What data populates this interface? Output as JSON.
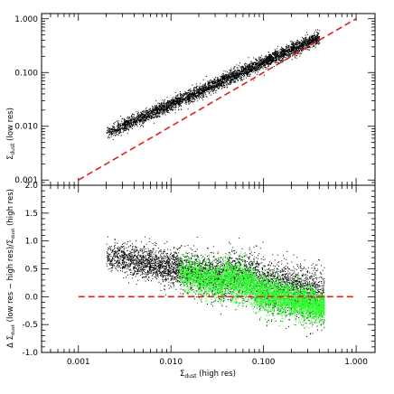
{
  "chart_data": [
    {
      "id": "top",
      "type": "scatter",
      "xlabel_main": "Σ",
      "xlabel_sub": "dust",
      "xlabel_tail": " (high res)",
      "ylabel_main": "Σ",
      "ylabel_sub": "dust",
      "ylabel_tail": " (low res)",
      "xscale": "log",
      "yscale": "log",
      "xlim": [
        0.0004,
        1.6
      ],
      "ylim": [
        0.0008,
        1.25
      ],
      "yticks": [
        0.001,
        0.01,
        0.1,
        1.0
      ],
      "ytick_labels": [
        "0.001",
        "0.010",
        "0.100",
        "1.000"
      ],
      "series": [
        {
          "color": "#000000",
          "points_desc": "dense black point cloud following low = 0.95*high^0.78 with scatter",
          "x_range": [
            0.002,
            0.4
          ]
        }
      ],
      "reference_line": {
        "from": [
          0.001,
          0.001
        ],
        "to": [
          1.0,
          1.0
        ],
        "color": "#e02020",
        "style": "dashed"
      }
    },
    {
      "id": "bottom",
      "type": "scatter",
      "xlabel_main": "Σ",
      "xlabel_sub": "dust",
      "xlabel_tail": " (high res)",
      "ylabel_text": "Δ Σ",
      "ylabel_sub1": "dust",
      "ylabel_mid": " (low res − high res)/Σ",
      "ylabel_sub2": "dust",
      "ylabel_tail": " (high res)",
      "xscale": "log",
      "yscale": "linear",
      "xlim": [
        0.0004,
        1.6
      ],
      "ylim": [
        -1.0,
        2.0
      ],
      "xticks": [
        0.001,
        0.01,
        0.1,
        1.0
      ],
      "xtick_labels": [
        "0.001",
        "0.010",
        "0.100",
        "1.000"
      ],
      "yticks": [
        -1.0,
        -0.5,
        0.0,
        0.5,
        1.0,
        1.5,
        2.0
      ],
      "ytick_labels": [
        "-1.0",
        "-0.5",
        "0.0",
        "0.5",
        "1.0",
        "1.5",
        "2.0"
      ],
      "series": [
        {
          "color": "#000000",
          "x_range": [
            0.002,
            0.4
          ],
          "trend_desc": "declining from ~0.8 at 0.002 to ~0.0 at 0.3"
        },
        {
          "color": "#33ff33",
          "x_range": [
            0.01,
            0.4
          ],
          "trend_desc": "green cloud from ~0.5 at 0.01 to ~-0.2 at 0.4"
        }
      ],
      "reference_line": {
        "y": 0.0,
        "x_from": 0.001,
        "x_to": 1.0,
        "color": "#e02020",
        "style": "dashed"
      }
    }
  ]
}
